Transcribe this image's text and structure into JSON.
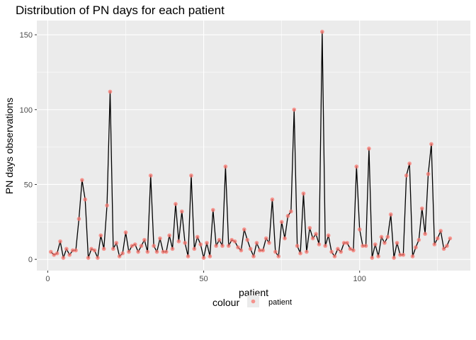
{
  "chart_data": {
    "type": "line",
    "title": "Distribution of PN days for each patient",
    "xlabel": "patient",
    "ylabel": "PN days observations",
    "xlim": [
      -3.5,
      135.5
    ],
    "ylim": [
      -7.5,
      159.5
    ],
    "x_ticks": [
      0,
      50,
      100
    ],
    "x_tick_labels": [
      "0",
      "50",
      "100"
    ],
    "y_ticks": [
      0,
      50,
      100,
      150
    ],
    "y_tick_labels": [
      "0",
      "50",
      "100",
      "150"
    ],
    "grid": true,
    "legend": {
      "title": "colour",
      "position": "bottom",
      "entries": [
        {
          "label": "patient",
          "color": "#F8766D"
        }
      ]
    },
    "series": [
      {
        "name": "patient",
        "line_color": "#000000",
        "point_color": "#F8766D",
        "x": [
          1,
          2,
          3,
          4,
          5,
          6,
          7,
          8,
          9,
          10,
          11,
          12,
          13,
          14,
          15,
          16,
          17,
          18,
          19,
          20,
          21,
          22,
          23,
          24,
          25,
          26,
          27,
          28,
          29,
          30,
          31,
          32,
          33,
          34,
          35,
          36,
          37,
          38,
          39,
          40,
          41,
          42,
          43,
          44,
          45,
          46,
          47,
          48,
          49,
          50,
          51,
          52,
          53,
          54,
          55,
          56,
          57,
          58,
          59,
          60,
          61,
          62,
          63,
          64,
          65,
          66,
          67,
          68,
          69,
          70,
          71,
          72,
          73,
          74,
          75,
          76,
          77,
          78,
          79,
          80,
          81,
          82,
          83,
          84,
          85,
          86,
          87,
          88,
          89,
          90,
          91,
          92,
          93,
          94,
          95,
          96,
          97,
          98,
          99,
          100,
          101,
          102,
          103,
          104,
          105,
          106,
          107,
          108,
          109,
          110,
          111,
          112,
          113,
          114,
          115,
          116,
          117,
          118,
          119,
          120,
          121,
          122,
          123,
          124,
          125,
          126,
          127,
          128,
          129,
          130
        ],
        "values": [
          5,
          3,
          4,
          12,
          1,
          7,
          3,
          6,
          6,
          27,
          53,
          40,
          1,
          7,
          6,
          1,
          16,
          7,
          36,
          112,
          7,
          11,
          2,
          4,
          18,
          5,
          9,
          10,
          5,
          9,
          13,
          5,
          56,
          9,
          5,
          14,
          5,
          5,
          16,
          7,
          37,
          12,
          32,
          11,
          2,
          56,
          7,
          15,
          10,
          1,
          11,
          2,
          33,
          9,
          13,
          9,
          62,
          9,
          13,
          12,
          8,
          6,
          20,
          13,
          7,
          2,
          11,
          6,
          6,
          14,
          11,
          40,
          5,
          2,
          25,
          14,
          29,
          32,
          100,
          9,
          4,
          44,
          5,
          21,
          14,
          17,
          10,
          152,
          9,
          16,
          5,
          2,
          7,
          5,
          11,
          11,
          7,
          6,
          62,
          20,
          9,
          9,
          74,
          1,
          10,
          2,
          15,
          11,
          15,
          30,
          1,
          11,
          3,
          3,
          56,
          64,
          2,
          8,
          13,
          34,
          17,
          57,
          77,
          10,
          14,
          19,
          7,
          9,
          14,
          null
        ]
      }
    ]
  }
}
